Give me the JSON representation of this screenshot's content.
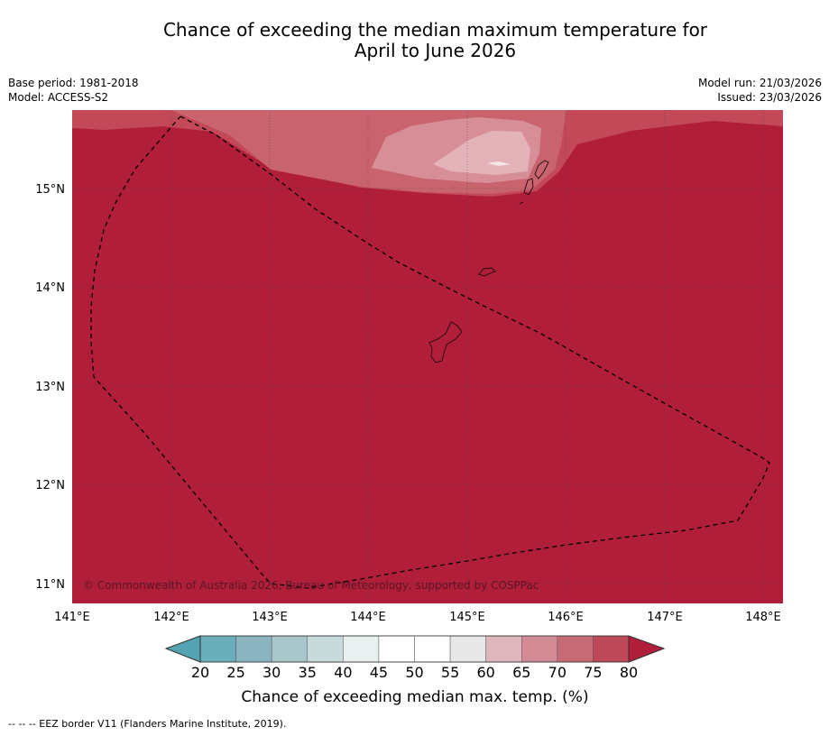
{
  "title": "Chance of exceeding the median maximum temperature for\nApril to June 2026",
  "info": {
    "base_period": "Base period: 1981-2018",
    "model": "Model: ACCESS-S2",
    "model_run": "Model run: 21/03/2026",
    "issued": "Issued: 23/03/2026"
  },
  "map": {
    "lat_labels": [
      "15°N",
      "14°N",
      "13°N",
      "12°N",
      "11°N"
    ],
    "lon_labels": [
      "141°E",
      "142°E",
      "143°E",
      "144°E",
      "145°E",
      "146°E",
      "147°E",
      "148°E"
    ],
    "copyright": "© Commonwealth of Australia 2026, Bureau of Meteorology, supported by COSPPac"
  },
  "colorbar": {
    "ticks": [
      "20",
      "25",
      "30",
      "35",
      "40",
      "45",
      "50",
      "55",
      "60",
      "65",
      "70",
      "75",
      "80"
    ],
    "colors": [
      "#6aaebb",
      "#8ab5c0",
      "#a9c7cb",
      "#c8dadc",
      "#e9f0f0",
      "#ffffff",
      "#ffffff",
      "#e8e8e8",
      "#dfb6bb",
      "#d28b94",
      "#c66a75",
      "#bd4857"
    ],
    "under_color": "#53a3b3",
    "over_color": "#b01e3a",
    "label": "Chance of exceeding median max. temp. (%)"
  },
  "colors": {
    "band_80": "#b01e3a",
    "band_75": "#c34858",
    "band_70": "#c9646f",
    "band_65": "#d78e97",
    "band_60": "#e3b3b9"
  },
  "footnote": "--  --  -- EEZ border V11 (Flanders Marine Institute, 2019)."
}
